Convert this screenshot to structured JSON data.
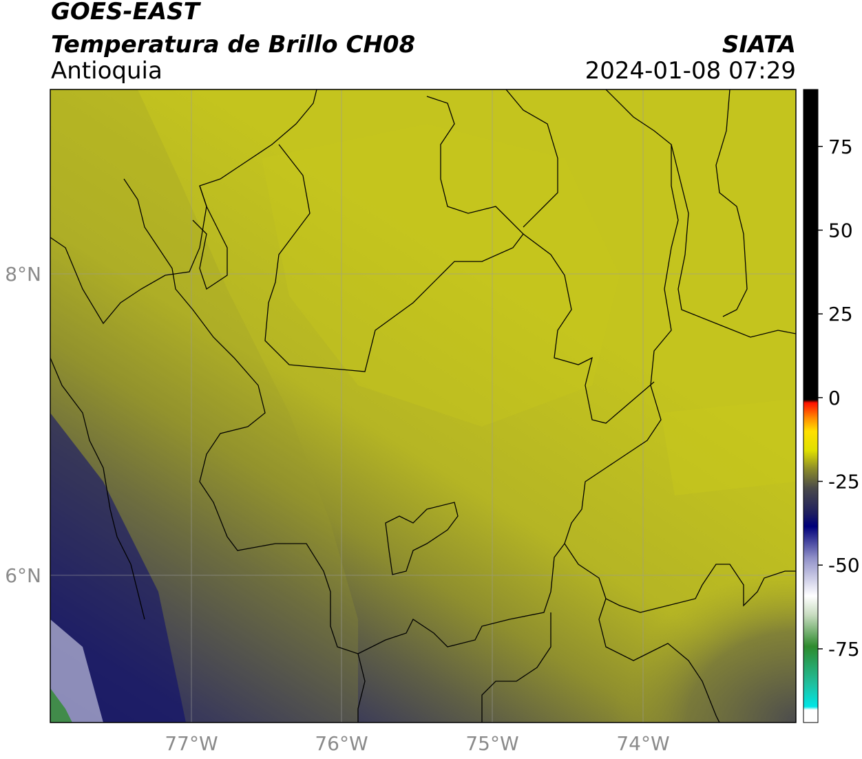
{
  "header": {
    "satellite": "GOES-EAST",
    "product": "Temperatura de Brillo CH08",
    "region": "Antioquia",
    "agency": "SIATA",
    "datetime": "2024-01-08 07:29"
  },
  "map": {
    "lon_ticks": [
      "77°W",
      "76°W",
      "75°W",
      "74°W"
    ],
    "lat_ticks": [
      "8°N",
      "6°N"
    ],
    "lon_range": [
      -77.94,
      -72.98
    ],
    "lat_range": [
      5.07,
      9.22
    ],
    "gridlines": true
  },
  "colorbar": {
    "ticks": [
      "75",
      "50",
      "25",
      "0",
      "-25",
      "-50",
      "-75"
    ],
    "tick_values": [
      75,
      50,
      25,
      0,
      -25,
      -50,
      -75
    ],
    "range": [
      -97,
      92
    ]
  },
  "colors": {
    "field_yellow": "#bdbd22",
    "field_olive": "#8f8f2e",
    "field_gray": "#4c4c55",
    "field_navy": "#0a0a70",
    "border": "#000000",
    "grid": "#9a9a9a"
  }
}
